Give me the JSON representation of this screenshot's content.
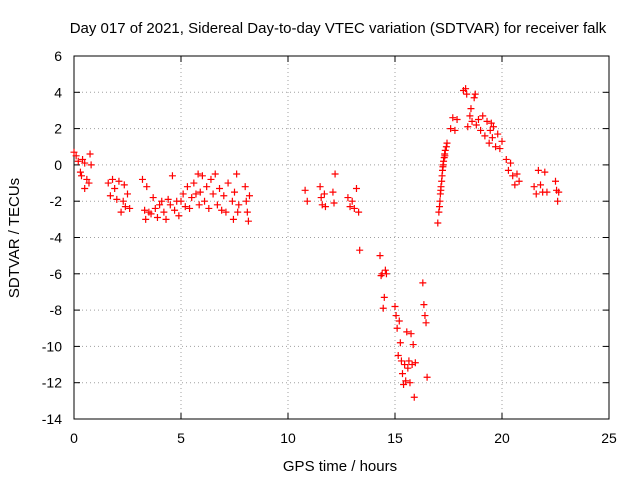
{
  "chart_data": {
    "type": "scatter",
    "title": "Day 017 of 2021, Sidereal Day-to-day VTEC variation (SDTVAR) for receiver falk",
    "xlabel": "GPS time / hours",
    "ylabel": "SDTVAR / TECUs",
    "xlim": [
      0,
      25
    ],
    "ylim": [
      -14,
      6
    ],
    "xticks": [
      0,
      5,
      10,
      15,
      20,
      25
    ],
    "yticks": [
      -14,
      -12,
      -10,
      -8,
      -6,
      -4,
      -2,
      0,
      2,
      4,
      6
    ],
    "grid": true,
    "marker": "+",
    "series": [
      {
        "name": "SDTVAR",
        "color": "#ff0000",
        "points": [
          [
            0.0,
            0.7
          ],
          [
            0.1,
            0.5
          ],
          [
            0.2,
            0.2
          ],
          [
            0.3,
            -0.4
          ],
          [
            0.35,
            -0.6
          ],
          [
            0.4,
            0.3
          ],
          [
            0.5,
            0.1
          ],
          [
            0.5,
            -1.3
          ],
          [
            0.6,
            -0.8
          ],
          [
            0.7,
            -1.0
          ],
          [
            0.75,
            0.6
          ],
          [
            0.8,
            0.0
          ],
          [
            1.6,
            -1.0
          ],
          [
            1.7,
            -1.7
          ],
          [
            1.8,
            -0.8
          ],
          [
            1.9,
            -1.3
          ],
          [
            2.0,
            -1.9
          ],
          [
            2.1,
            -0.9
          ],
          [
            2.2,
            -2.6
          ],
          [
            2.3,
            -2.0
          ],
          [
            2.35,
            -1.1
          ],
          [
            2.4,
            -2.3
          ],
          [
            2.5,
            -1.6
          ],
          [
            2.6,
            -2.4
          ],
          [
            3.2,
            -0.8
          ],
          [
            3.3,
            -2.5
          ],
          [
            3.35,
            -3.0
          ],
          [
            3.4,
            -1.2
          ],
          [
            3.5,
            -2.6
          ],
          [
            3.6,
            -2.7
          ],
          [
            3.7,
            -1.8
          ],
          [
            3.8,
            -2.4
          ],
          [
            3.9,
            -2.9
          ],
          [
            4.0,
            -2.2
          ],
          [
            4.1,
            -2.0
          ],
          [
            4.2,
            -2.6
          ],
          [
            4.3,
            -3.0
          ],
          [
            4.4,
            -1.9
          ],
          [
            4.5,
            -2.2
          ],
          [
            4.6,
            -0.6
          ],
          [
            4.7,
            -2.5
          ],
          [
            4.8,
            -2.0
          ],
          [
            4.9,
            -2.8
          ],
          [
            5.0,
            -2.0
          ],
          [
            5.1,
            -1.6
          ],
          [
            5.2,
            -2.3
          ],
          [
            5.3,
            -1.2
          ],
          [
            5.4,
            -2.4
          ],
          [
            5.5,
            -1.8
          ],
          [
            5.6,
            -1.0
          ],
          [
            5.7,
            -1.6
          ],
          [
            5.8,
            -0.5
          ],
          [
            5.85,
            -2.2
          ],
          [
            5.9,
            -1.5
          ],
          [
            6.0,
            -0.6
          ],
          [
            6.1,
            -2.0
          ],
          [
            6.2,
            -1.2
          ],
          [
            6.3,
            -2.4
          ],
          [
            6.4,
            -0.8
          ],
          [
            6.5,
            -1.6
          ],
          [
            6.6,
            -0.5
          ],
          [
            6.7,
            -2.2
          ],
          [
            6.8,
            -1.3
          ],
          [
            6.9,
            -2.5
          ],
          [
            7.0,
            -1.7
          ],
          [
            7.1,
            -2.6
          ],
          [
            7.2,
            -1.0
          ],
          [
            7.4,
            -2.0
          ],
          [
            7.45,
            -3.0
          ],
          [
            7.5,
            -1.5
          ],
          [
            7.6,
            -0.5
          ],
          [
            7.65,
            -2.6
          ],
          [
            7.7,
            -2.2
          ],
          [
            8.0,
            -1.2
          ],
          [
            8.05,
            -2.0
          ],
          [
            8.1,
            -2.6
          ],
          [
            8.15,
            -3.1
          ],
          [
            8.2,
            -1.7
          ],
          [
            10.8,
            -1.4
          ],
          [
            10.9,
            -2.0
          ],
          [
            11.5,
            -1.2
          ],
          [
            11.55,
            -1.8
          ],
          [
            11.6,
            -2.2
          ],
          [
            11.7,
            -1.6
          ],
          [
            11.75,
            -2.3
          ],
          [
            12.1,
            -1.5
          ],
          [
            12.15,
            -2.1
          ],
          [
            12.2,
            -0.5
          ],
          [
            12.8,
            -1.8
          ],
          [
            12.9,
            -2.3
          ],
          [
            13.0,
            -2.0
          ],
          [
            13.1,
            -2.4
          ],
          [
            13.2,
            -1.3
          ],
          [
            13.3,
            -2.6
          ],
          [
            13.35,
            -4.7
          ],
          [
            14.3,
            -5.0
          ],
          [
            14.35,
            -6.1
          ],
          [
            14.4,
            -6.0
          ],
          [
            14.45,
            -7.9
          ],
          [
            14.5,
            -7.3
          ],
          [
            14.55,
            -5.8
          ],
          [
            14.6,
            -6.0
          ],
          [
            15.0,
            -7.8
          ],
          [
            15.05,
            -8.3
          ],
          [
            15.1,
            -9.0
          ],
          [
            15.15,
            -10.5
          ],
          [
            15.2,
            -8.6
          ],
          [
            15.25,
            -9.8
          ],
          [
            15.3,
            -10.8
          ],
          [
            15.35,
            -11.5
          ],
          [
            15.4,
            -12.1
          ],
          [
            15.45,
            -11.0
          ],
          [
            15.5,
            -11.9
          ],
          [
            15.55,
            -9.2
          ],
          [
            15.6,
            -11.2
          ],
          [
            15.65,
            -10.8
          ],
          [
            15.7,
            -12.0
          ],
          [
            15.75,
            -9.3
          ],
          [
            15.8,
            -11.0
          ],
          [
            15.85,
            -9.9
          ],
          [
            15.9,
            -12.8
          ],
          [
            15.95,
            -10.9
          ],
          [
            16.3,
            -6.5
          ],
          [
            16.35,
            -7.7
          ],
          [
            16.4,
            -8.3
          ],
          [
            16.45,
            -8.7
          ],
          [
            16.5,
            -11.7
          ],
          [
            17.0,
            -3.2
          ],
          [
            17.05,
            -2.6
          ],
          [
            17.1,
            -2.0
          ],
          [
            17.12,
            -1.6
          ],
          [
            17.15,
            -1.2
          ],
          [
            17.18,
            -0.9
          ],
          [
            17.2,
            -0.6
          ],
          [
            17.22,
            -0.3
          ],
          [
            17.25,
            0.0
          ],
          [
            17.27,
            0.2
          ],
          [
            17.3,
            0.4
          ],
          [
            17.32,
            0.6
          ],
          [
            17.35,
            0.8
          ],
          [
            17.4,
            1.0
          ],
          [
            17.43,
            1.2
          ],
          [
            17.08,
            -2.3
          ],
          [
            17.14,
            -1.4
          ],
          [
            17.24,
            -0.1
          ],
          [
            17.33,
            0.5
          ],
          [
            17.6,
            2.0
          ],
          [
            17.7,
            2.6
          ],
          [
            17.8,
            1.9
          ],
          [
            17.9,
            2.5
          ],
          [
            18.2,
            4.1
          ],
          [
            18.3,
            4.2
          ],
          [
            18.35,
            3.9
          ],
          [
            18.4,
            2.1
          ],
          [
            18.5,
            2.7
          ],
          [
            18.55,
            3.1
          ],
          [
            18.6,
            2.4
          ],
          [
            18.7,
            3.7
          ],
          [
            18.75,
            3.9
          ],
          [
            18.8,
            2.2
          ],
          [
            18.9,
            2.5
          ],
          [
            19.0,
            1.9
          ],
          [
            19.1,
            2.7
          ],
          [
            19.2,
            1.6
          ],
          [
            19.3,
            2.4
          ],
          [
            19.4,
            1.2
          ],
          [
            19.45,
            1.9
          ],
          [
            19.5,
            2.3
          ],
          [
            19.55,
            1.5
          ],
          [
            19.6,
            2.1
          ],
          [
            19.7,
            1.0
          ],
          [
            19.8,
            1.7
          ],
          [
            19.9,
            0.9
          ],
          [
            20.0,
            1.3
          ],
          [
            20.2,
            0.3
          ],
          [
            20.3,
            -0.3
          ],
          [
            20.4,
            0.1
          ],
          [
            20.5,
            -0.6
          ],
          [
            20.6,
            -1.1
          ],
          [
            20.7,
            -0.5
          ],
          [
            20.8,
            -0.9
          ],
          [
            21.5,
            -1.2
          ],
          [
            21.6,
            -1.6
          ],
          [
            21.7,
            -0.3
          ],
          [
            21.8,
            -1.1
          ],
          [
            21.9,
            -1.5
          ],
          [
            22.0,
            -0.4
          ],
          [
            22.1,
            -1.5
          ],
          [
            22.5,
            -0.9
          ],
          [
            22.55,
            -1.4
          ],
          [
            22.6,
            -2.0
          ],
          [
            22.65,
            -1.5
          ]
        ]
      }
    ]
  }
}
